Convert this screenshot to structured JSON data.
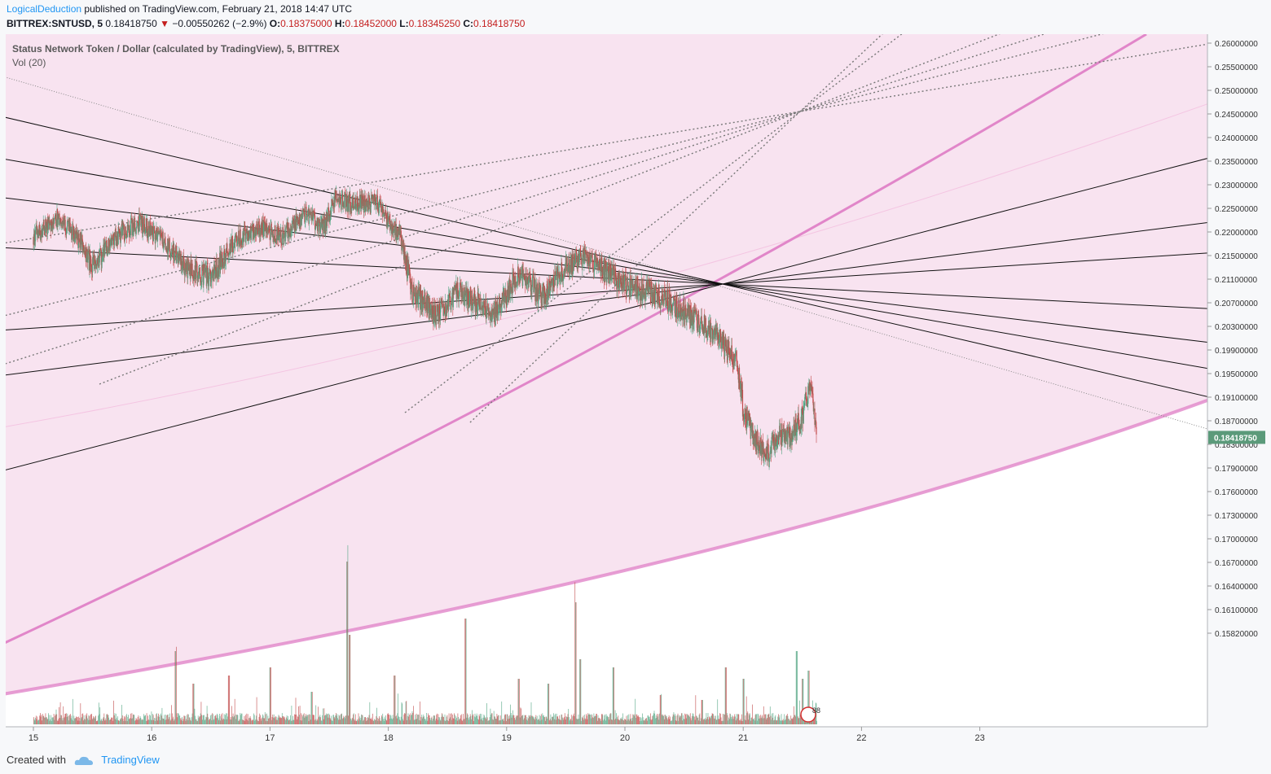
{
  "header": {
    "author": "LogicalDeduction",
    "published_text": "published on TradingView.com, February 21, 2018 14:47 UTC",
    "symbol": "BITTREX:SNTUSD, 5",
    "last": "0.18418750",
    "change": "−0.00550262 (−2.9%)",
    "open_label": "O:",
    "open": "0.18375000",
    "high_label": "H:",
    "high": "0.18452000",
    "low_label": "L:",
    "low": "0.18345250",
    "close_label": "C:",
    "close": "0.18418750"
  },
  "legend": {
    "title": "Status Network Token / Dollar (calculated by TradingView), 5, BITTREX",
    "volume": "Vol (20)"
  },
  "footer": {
    "created_with": "Created with",
    "brand": "TradingView"
  },
  "colors": {
    "up": "#53a583",
    "down": "#c24a4a",
    "channel_fill": "#f8e3f0",
    "channel_line": "#e186c9",
    "price_tag": "#5b9a7a",
    "background": "#ffffff"
  },
  "chart_data": {
    "type": "candlestick",
    "timeframe": "5",
    "x_tick_labels": [
      "15",
      "16",
      "17",
      "18",
      "19",
      "20",
      "21",
      "22",
      "23"
    ],
    "y_tick_labels": [
      "0.26000000",
      "0.25500000",
      "0.25000000",
      "0.24500000",
      "0.24000000",
      "0.23500000",
      "0.23000000",
      "0.22500000",
      "0.22000000",
      "0.21500000",
      "0.21100000",
      "0.20700000",
      "0.20300000",
      "0.19900000",
      "0.19500000",
      "0.19100000",
      "0.18700000",
      "0.18300000",
      "0.17900000",
      "0.17600000",
      "0.17300000",
      "0.17000000",
      "0.16700000",
      "0.16400000",
      "0.16100000",
      "0.15820000"
    ],
    "last_price_label": "0.18418750",
    "price_path": [
      [
        15.0,
        0.219
      ],
      [
        15.2,
        0.223
      ],
      [
        15.4,
        0.218
      ],
      [
        15.5,
        0.213
      ],
      [
        15.7,
        0.219
      ],
      [
        15.9,
        0.222
      ],
      [
        16.1,
        0.218
      ],
      [
        16.3,
        0.213
      ],
      [
        16.5,
        0.211
      ],
      [
        16.7,
        0.218
      ],
      [
        16.9,
        0.221
      ],
      [
        17.1,
        0.219
      ],
      [
        17.3,
        0.224
      ],
      [
        17.45,
        0.221
      ],
      [
        17.55,
        0.227
      ],
      [
        17.7,
        0.226
      ],
      [
        17.9,
        0.226
      ],
      [
        18.1,
        0.219
      ],
      [
        18.2,
        0.209
      ],
      [
        18.4,
        0.205
      ],
      [
        18.6,
        0.209
      ],
      [
        18.9,
        0.205
      ],
      [
        19.1,
        0.212
      ],
      [
        19.3,
        0.208
      ],
      [
        19.5,
        0.213
      ],
      [
        19.65,
        0.215
      ],
      [
        19.8,
        0.213
      ],
      [
        20.0,
        0.21
      ],
      [
        20.2,
        0.209
      ],
      [
        20.4,
        0.207
      ],
      [
        20.6,
        0.204
      ],
      [
        20.8,
        0.201
      ],
      [
        20.95,
        0.197
      ],
      [
        21.0,
        0.189
      ],
      [
        21.1,
        0.184
      ],
      [
        21.2,
        0.181
      ],
      [
        21.3,
        0.185
      ],
      [
        21.4,
        0.184
      ],
      [
        21.5,
        0.188
      ],
      [
        21.55,
        0.192
      ],
      [
        21.58,
        0.194
      ],
      [
        21.62,
        0.184
      ]
    ],
    "volume_spikes": [
      {
        "day": 16.2,
        "rel": 0.45
      },
      {
        "day": 16.35,
        "rel": 0.25
      },
      {
        "day": 16.65,
        "rel": 0.3
      },
      {
        "day": 17.0,
        "rel": 0.35
      },
      {
        "day": 17.35,
        "rel": 0.2
      },
      {
        "day": 17.65,
        "rel": 1.0
      },
      {
        "day": 17.67,
        "rel": 0.55
      },
      {
        "day": 18.05,
        "rel": 0.3
      },
      {
        "day": 18.65,
        "rel": 0.65
      },
      {
        "day": 19.1,
        "rel": 0.28
      },
      {
        "day": 19.35,
        "rel": 0.25
      },
      {
        "day": 19.58,
        "rel": 0.75
      },
      {
        "day": 19.62,
        "rel": 0.4
      },
      {
        "day": 19.9,
        "rel": 0.35
      },
      {
        "day": 20.3,
        "rel": 0.18
      },
      {
        "day": 20.65,
        "rel": 0.15
      },
      {
        "day": 20.85,
        "rel": 0.35
      },
      {
        "day": 21.0,
        "rel": 0.28
      },
      {
        "day": 21.45,
        "rel": 0.45
      },
      {
        "day": 21.5,
        "rel": 0.28
      },
      {
        "day": 21.55,
        "rel": 0.33
      }
    ]
  }
}
